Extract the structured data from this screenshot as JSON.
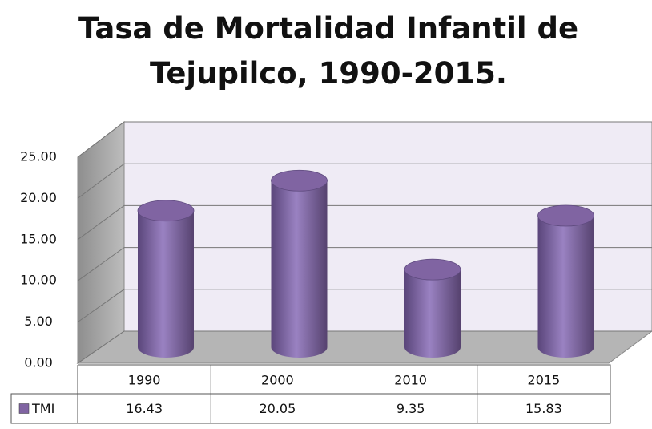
{
  "chart_data": {
    "type": "bar",
    "title": "Tasa de Mortalidad Infantil de Tejupilco, 1990-2015.",
    "categories": [
      "1990",
      "2000",
      "2010",
      "2015"
    ],
    "series": [
      {
        "name": "TMI",
        "color": "#8064a2",
        "values": [
          16.43,
          20.05,
          9.35,
          15.83
        ]
      }
    ],
    "ylim": [
      0,
      25
    ],
    "yticks": [
      {
        "value": 0,
        "label": "0.00"
      },
      {
        "value": 5,
        "label": "5.00"
      },
      {
        "value": 10,
        "label": "10.00"
      },
      {
        "value": 15,
        "label": "15.00"
      },
      {
        "value": 20,
        "label": "20.00"
      },
      {
        "value": 25,
        "label": "25.00"
      }
    ],
    "grid": true,
    "data_table": true
  }
}
